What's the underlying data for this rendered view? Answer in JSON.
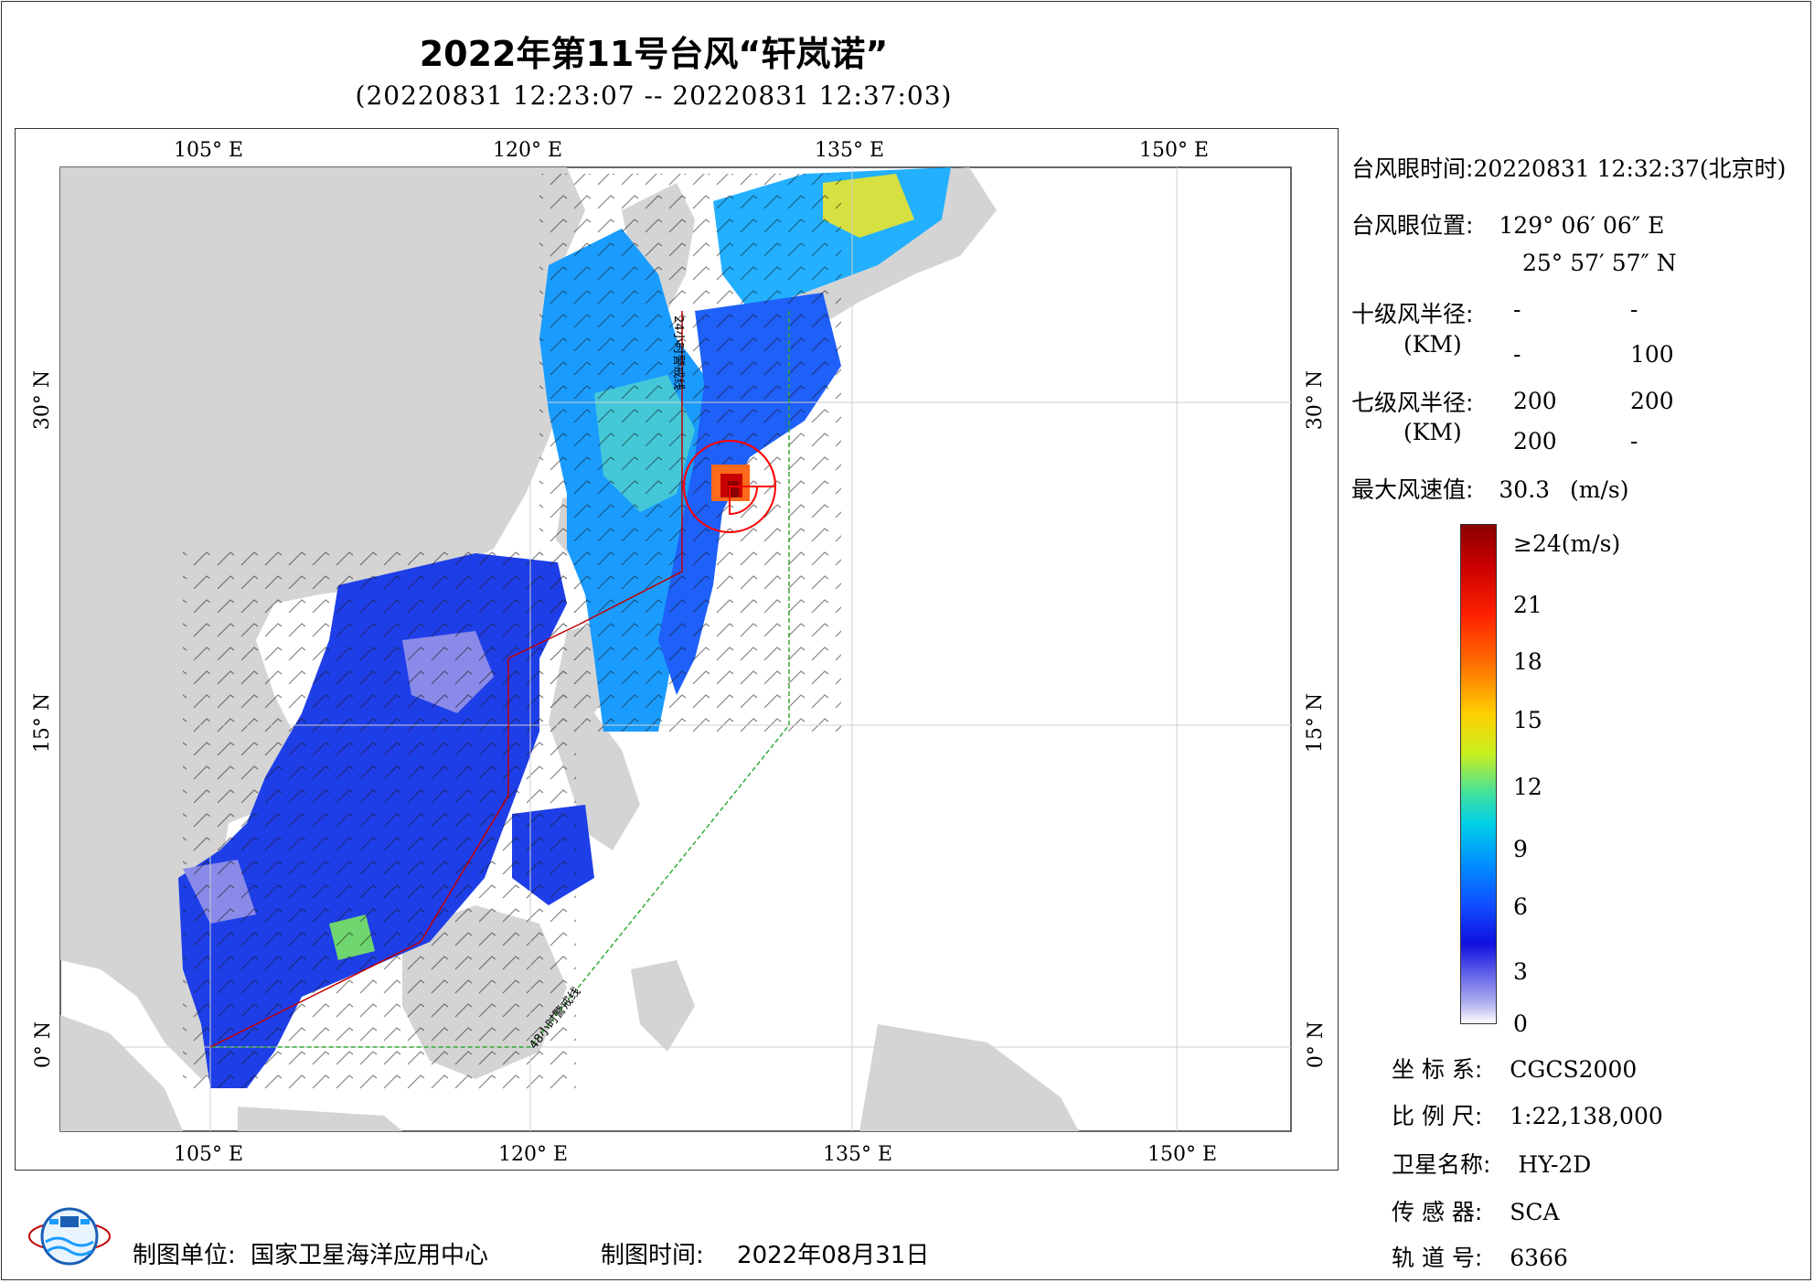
{
  "header": {
    "title": "2022年第11号台风“轩岚诺”",
    "subtitle": "(20220831 12:23:07 -- 20220831 12:37:03)"
  },
  "map": {
    "lon_ticks": [
      "105° E",
      "120° E",
      "135° E",
      "150° E"
    ],
    "lat_ticks": [
      "30° N",
      "15° N",
      "0° N"
    ],
    "warning_24h_label": "24小时警戒线",
    "warning_48h_label": "48小时警戒线",
    "colors": {
      "land": "#d4d4d4",
      "ocean": "#ffffff",
      "warning_24h": "#c00000",
      "warning_48h": "#33aa33",
      "eye_circle": "#ff0000"
    }
  },
  "info": {
    "eye_time_label": "台风眼时间:",
    "eye_time_value": "20220831 12:32:37(北京时)",
    "eye_pos_label": "台风眼位置:",
    "eye_lon": "129° 06′ 06″ E",
    "eye_lat": "25° 57′ 57″ N",
    "r10_label": "十级风半径:",
    "r10_unit": "(KM)",
    "r10_values": [
      "-",
      "-",
      "-",
      "100"
    ],
    "r7_label": "七级风半径:",
    "r7_unit": "(KM)",
    "r7_values": [
      "200",
      "200",
      "200",
      "-"
    ],
    "max_wind_label": "最大风速值:",
    "max_wind_value": "30.3",
    "max_wind_unit": "(m/s)"
  },
  "colorbar": {
    "top_label": "≥24(m/s)",
    "labels": [
      "21",
      "18",
      "15",
      "12",
      "9",
      "6",
      "3",
      "0"
    ]
  },
  "meta": {
    "crs_label": "坐 标 系:",
    "crs_value": "CGCS2000",
    "scale_label": "比 例 尺:",
    "scale_value": "1:22,138,000",
    "sat_label": "卫星名称:",
    "sat_value": "HY-2D",
    "sensor_label": "传 感 器:",
    "sensor_value": "SCA",
    "orbit_label": "轨 道 号:",
    "orbit_value": "6366"
  },
  "footer": {
    "maker_label": "制图单位:",
    "maker_value": "国家卫星海洋应用中心",
    "date_label": "制图时间:",
    "date_value": "2022年08月31日"
  }
}
